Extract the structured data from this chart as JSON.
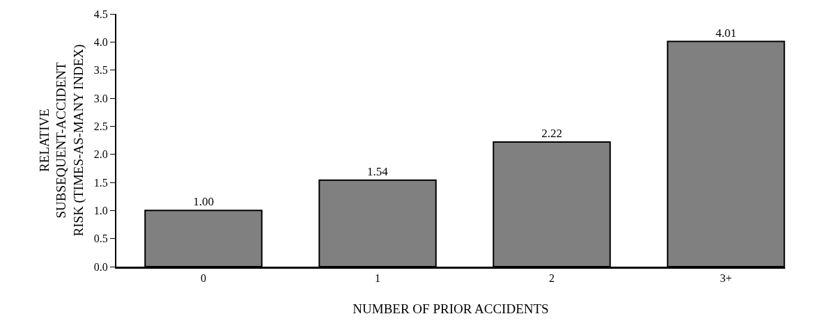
{
  "chart_data": {
    "type": "bar",
    "xlabel": "NUMBER OF PRIOR ACCIDENTS",
    "ylabel": "RELATIVE\nSUBSEQUENT-ACCIDENT\nRISK (TIMES-AS-MANY INDEX)",
    "categories": [
      "0",
      "1",
      "2",
      "3+"
    ],
    "values": [
      1.0,
      1.54,
      2.22,
      4.01
    ],
    "value_labels": [
      "1.00",
      "1.54",
      "2.22",
      "4.01"
    ],
    "color": "#808080",
    "ylim": [
      0,
      4.5
    ],
    "yticks": [
      {
        "value": 0,
        "label": "0.0"
      },
      {
        "value": 0.5,
        "label": "0.5"
      },
      {
        "value": 1,
        "label": "1.0"
      },
      {
        "value": 1.5,
        "label": "1.5"
      },
      {
        "value": 2,
        "label": "2.0"
      },
      {
        "value": 2.5,
        "label": "2.5"
      },
      {
        "value": 3,
        "label": "3.0"
      },
      {
        "value": 3.5,
        "label": "3.5"
      },
      {
        "value": 4,
        "label": "4.0"
      },
      {
        "value": 4.5,
        "label": "4.5"
      }
    ],
    "legend": false
  }
}
